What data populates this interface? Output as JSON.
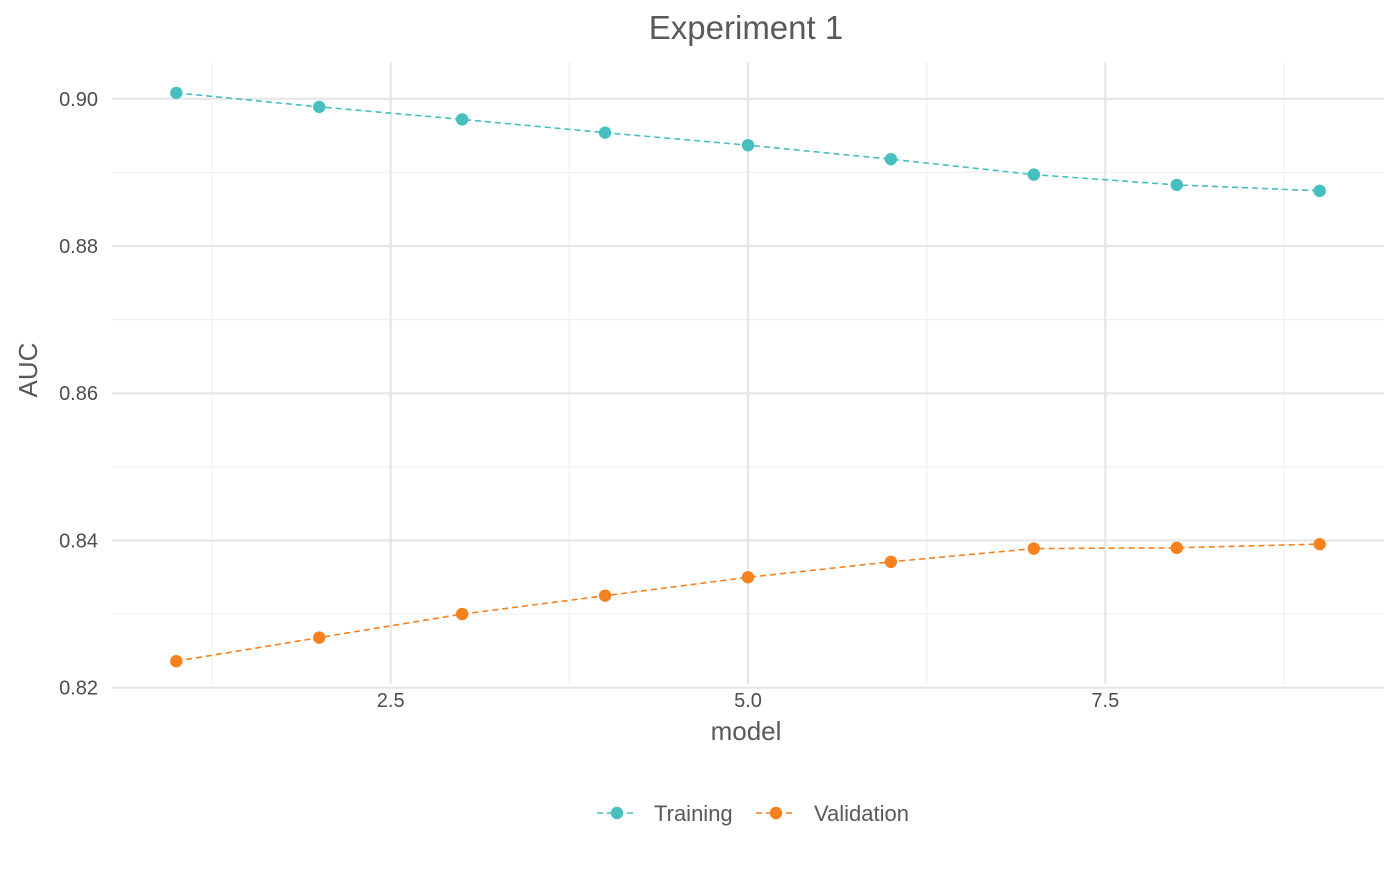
{
  "chart_data": {
    "type": "line",
    "title": "Experiment 1",
    "xlabel": "model",
    "ylabel": "AUC",
    "x": [
      1,
      2,
      3,
      4,
      5,
      6,
      7,
      8,
      9
    ],
    "xlim": [
      0.55,
      9.45
    ],
    "ylim": [
      0.8205,
      0.905
    ],
    "x_ticks": [
      2.5,
      5.0,
      7.5
    ],
    "x_tick_labels": [
      "2.5",
      "5.0",
      "7.5"
    ],
    "y_ticks": [
      0.82,
      0.84,
      0.86,
      0.88,
      0.9
    ],
    "y_tick_labels": [
      "0.82",
      "0.84",
      "0.86",
      "0.88",
      "0.90"
    ],
    "grid": true,
    "legend_position": "bottom",
    "line_style": "dashed",
    "series": [
      {
        "name": "Training",
        "color": "#47bfbf",
        "values": [
          0.9008,
          0.8989,
          0.8972,
          0.8954,
          0.8937,
          0.8918,
          0.8897,
          0.8883,
          0.8875
        ]
      },
      {
        "name": "Validation",
        "color": "#f5821f",
        "values": [
          0.8236,
          0.8268,
          0.83,
          0.8325,
          0.835,
          0.8371,
          0.8389,
          0.839,
          0.8395
        ]
      }
    ]
  }
}
